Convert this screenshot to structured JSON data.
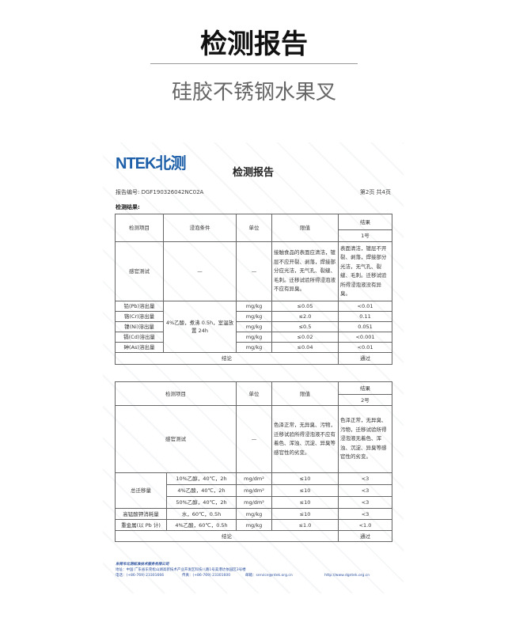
{
  "header": {
    "title": "检测报告",
    "subtitle": "硅胶不锈钢水果叉"
  },
  "doc": {
    "logo": "NTEK北测",
    "title": "检测报告",
    "report_no": "报告编号: DGF190326042NC02A",
    "page": "第2页 共4页",
    "results_label": "检测结果:"
  },
  "table1": {
    "headers": {
      "item": "检测项目",
      "condition": "浸泡条件",
      "unit": "单位",
      "limit": "限值",
      "result": "结果",
      "sample": "1号"
    },
    "sensory": {
      "item": "感官测试",
      "condition": "—",
      "unit": "—",
      "limit": "接触食品的表面应清洁，镀层不应开裂、剥落，焊接部分应光洁，无气孔、裂缝、毛刺。迁移试验所得浸泡液不应有异臭。",
      "result": "表面清洁，镀层不开裂、剥落，焊接部分光洁，无气孔、裂缝、毛刺。迁移试验所得浸泡液没有异臭。"
    },
    "condition": "4%乙酸，煮沸 0.5h，室温放置 24h",
    "rows": [
      {
        "item": "铅(Pb)溶出量",
        "unit": "mg/kg",
        "limit": "≤0.05",
        "result": "<0.01"
      },
      {
        "item": "铬(Cr)溶出量",
        "unit": "mg/kg",
        "limit": "≤2.0",
        "result": "0.11"
      },
      {
        "item": "镍(Ni)溶出量",
        "unit": "mg/kg",
        "limit": "≤0.5",
        "result": "0.051"
      },
      {
        "item": "镉(Cd)溶出量",
        "unit": "mg/kg",
        "limit": "≤0.02",
        "result": "<0.001"
      },
      {
        "item": "砷(As)溶出量",
        "unit": "mg/kg",
        "limit": "≤0.04",
        "result": "<0.01"
      }
    ],
    "conclusion": "结论",
    "verdict": "通过"
  },
  "table2": {
    "headers": {
      "item": "检测项目",
      "unit": "单位",
      "limit": "限值",
      "result": "结果",
      "sample": "2号"
    },
    "sensory": {
      "item": "感官测试",
      "unit": "—",
      "limit": "色泽正常，无异臭、污物，迁移试验所得浸泡液不应有着色、浑浊、沉淀、异臭等感官性的劣变。",
      "result": "色泽正常，无异臭、污物，迁移试验所得浸泡液无着色、浑浊、沉淀、异臭等感官性的劣变。"
    },
    "migration": {
      "item": "总迁移量",
      "rows": [
        {
          "condition": "10%乙醇，40℃，2h",
          "unit": "mg/dm²",
          "limit": "≤10",
          "result": "<3"
        },
        {
          "condition": "4%乙酸，40℃，2h",
          "unit": "mg/dm²",
          "limit": "≤10",
          "result": "<3"
        },
        {
          "condition": "50%乙醇，40℃，2h",
          "unit": "mg/dm²",
          "limit": "≤10",
          "result": "<3"
        }
      ]
    },
    "kmno4": {
      "item": "高锰酸钾消耗量",
      "condition": "水，60℃，0.5h",
      "unit": "mg/kg",
      "limit": "≤10",
      "result": "<3"
    },
    "heavy": {
      "item": "重金属(以 Pb 计)",
      "condition": "4%乙酸，60℃，0.5h",
      "unit": "mg/kg",
      "limit": "≤1.0",
      "result": "<1.0"
    },
    "conclusion": "结论",
    "verdict": "通过"
  },
  "footer": {
    "company": "东莞市北测标准技术服务有限公司",
    "address": "地址：中国 广东省东莞松山湖高新技术产业开发区科技八路1号美港达依园区3号楼",
    "phone": "电话：(+86-769) 23301666",
    "fax": "传真：(+86-769) 23301600",
    "email": "邮箱：service@ntek.org.cn",
    "website": "http://www.dgntek.org.cn"
  }
}
